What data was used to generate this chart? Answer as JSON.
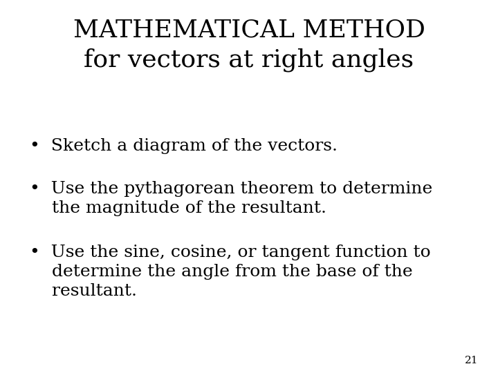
{
  "title_line1": "MATHEMATICAL METHOD",
  "title_line2": "for vectors at right angles",
  "bullet1": "Sketch a diagram of the vectors.",
  "bullet2_line1": "Use the pythagorean theorem to determine",
  "bullet2_line2": "the magnitude of the resultant.",
  "bullet3_line1": "Use the sine, cosine, or tangent function to",
  "bullet3_line2": "determine the angle from the base of the",
  "bullet3_line3": "resultant.",
  "page_number": "21",
  "background_color": "#ffffff",
  "text_color": "#000000",
  "title_fontsize": 26,
  "body_fontsize": 18,
  "page_num_fontsize": 11,
  "font_family": "DejaVu Serif"
}
